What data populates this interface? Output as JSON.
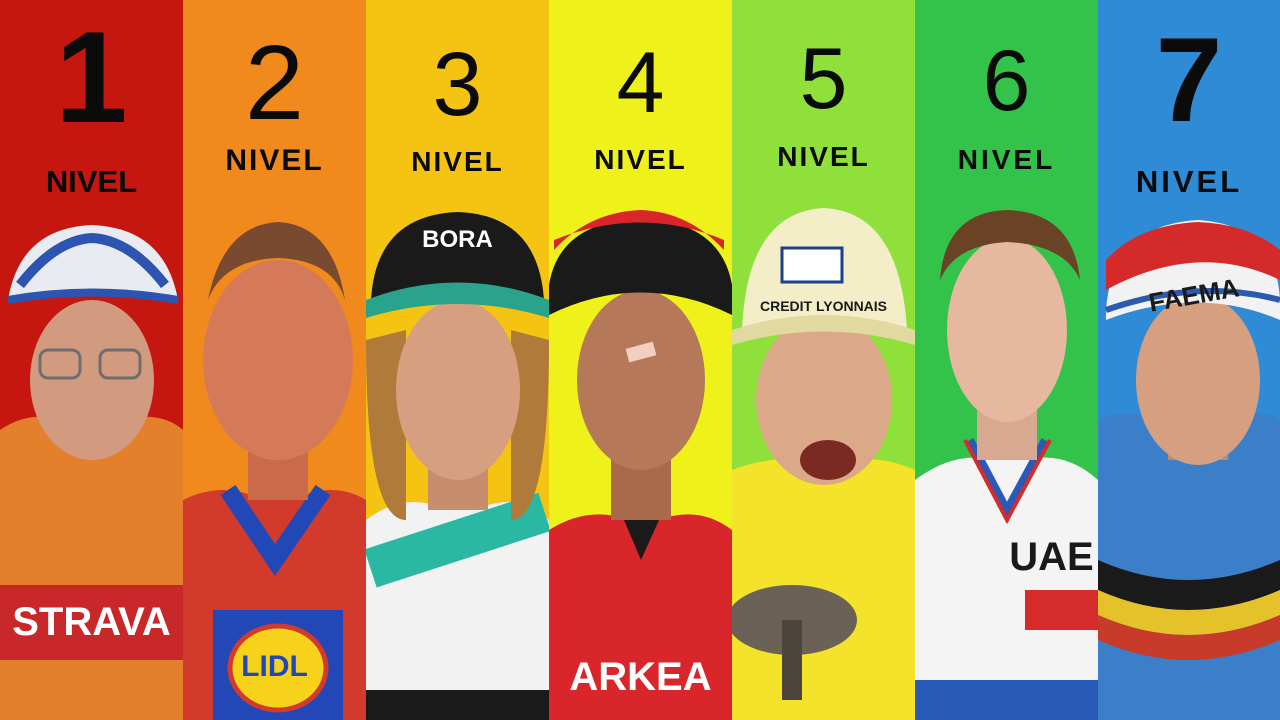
{
  "levels": [
    {
      "number": "1",
      "label": "NIVEL",
      "bg": "#c5170f",
      "jersey": "#e4802c",
      "jersey_accent": "#c9282a",
      "helmet": "#e8ecf2",
      "helmet_accent": "#2c54b0",
      "sponsor": "STRAVA"
    },
    {
      "number": "2",
      "label": "NIVEL",
      "bg": "#f08a1c",
      "jersey": "#d23a2c",
      "jersey_accent": "#2247b6",
      "helmet": "",
      "helmet_accent": "",
      "sponsor": "LIDL"
    },
    {
      "number": "3",
      "label": "NIVEL",
      "bg": "#f5c412",
      "jersey": "#f2f2f2",
      "jersey_accent": "#2bb8a2",
      "helmet": "#1a1a1a",
      "helmet_accent": "#29a38c",
      "sponsor": "BORA"
    },
    {
      "number": "4",
      "label": "NIVEL",
      "bg": "#eef21a",
      "jersey": "#d8262a",
      "jersey_accent": "#1a1a1a",
      "helmet": "#1a1a1a",
      "helmet_accent": "#d8262a",
      "sponsor": "ARKEA"
    },
    {
      "number": "5",
      "label": "NIVEL",
      "bg": "#8fe03a",
      "jersey": "#f5e22b",
      "jersey_accent": "#2a56a8",
      "helmet": "#f3eec7",
      "helmet_accent": "#1e3f8c",
      "sponsor": "CREDIT LYONNAIS"
    },
    {
      "number": "6",
      "label": "NIVEL",
      "bg": "#33c24a",
      "jersey": "#f4f4f4",
      "jersey_accent": "#d52b2b",
      "helmet": "",
      "helmet_accent": "",
      "sponsor": "UAE"
    },
    {
      "number": "7",
      "label": "NIVEL",
      "bg": "#2f8bd6",
      "jersey": "#3b7fc9",
      "jersey_accent": "#c83a2a",
      "helmet": "#f2f2f2",
      "helmet_accent": "#d42a2a",
      "sponsor": "FAEMA"
    }
  ]
}
